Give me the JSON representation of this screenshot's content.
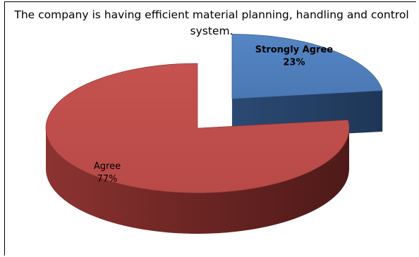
{
  "chart_data": {
    "type": "pie",
    "title": "The company is having efficient material planning, handling and control system.",
    "categories": [
      "Strongly Agree",
      "Agree"
    ],
    "values": [
      23,
      77
    ],
    "value_labels": [
      "23%",
      "77%"
    ],
    "colors": [
      "#4f81bd",
      "#c0504d"
    ],
    "three_d": true,
    "exploded": "Strongly Agree"
  }
}
